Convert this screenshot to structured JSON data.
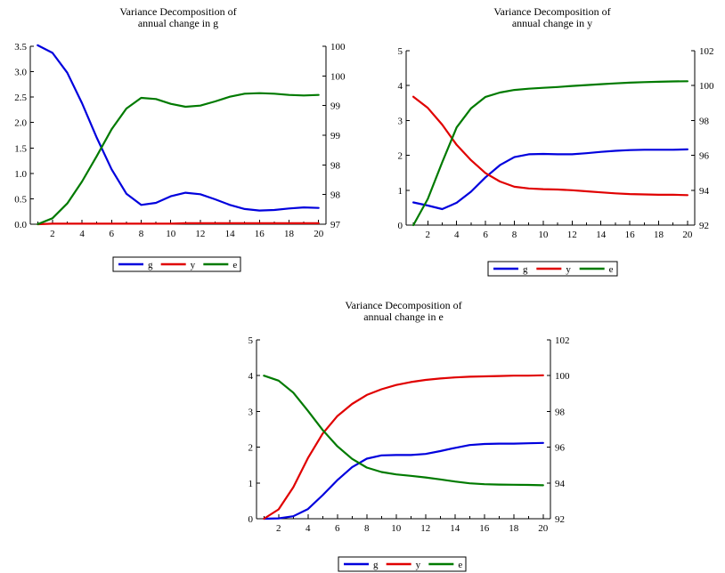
{
  "colors": {
    "g": "#0000dd",
    "y": "#e00000",
    "e": "#007a00"
  },
  "chart_data": [
    {
      "type": "line",
      "title_lines": [
        "Variance Decomposition of",
        "annual change in g"
      ],
      "x": [
        1,
        2,
        3,
        4,
        5,
        6,
        7,
        8,
        9,
        10,
        11,
        12,
        13,
        14,
        15,
        16,
        17,
        18,
        19,
        20
      ],
      "xlim": [
        0.5,
        20.5
      ],
      "xticks": [
        2,
        4,
        6,
        8,
        10,
        12,
        14,
        16,
        18,
        20
      ],
      "xtick_labels": [
        "2",
        "4",
        "6",
        "8",
        "10",
        "12",
        "14",
        "16",
        "18",
        "20"
      ],
      "ylim_left": [
        0,
        3.5
      ],
      "yticks_left": [
        0,
        0.5,
        1.0,
        1.5,
        2.0,
        2.5,
        3.0,
        3.5
      ],
      "ytick_labels_left": [
        "0.0",
        "0.5",
        "1.0",
        "1.5",
        "2.0",
        "2.5",
        "3.0",
        "3.5"
      ],
      "ylim_right": [
        97,
        100
      ],
      "yticks_right": [
        97,
        97.5,
        98,
        98.5,
        99,
        99.5,
        100
      ],
      "ytick_labels_right": [
        "97",
        "98",
        "98",
        "99",
        "99",
        "100",
        "100"
      ],
      "series": [
        {
          "name": "g",
          "axis": "left",
          "color_key": "g",
          "values": [
            3.52,
            3.37,
            2.98,
            2.38,
            1.7,
            1.08,
            0.6,
            0.38,
            0.42,
            0.55,
            0.62,
            0.59,
            0.49,
            0.38,
            0.3,
            0.27,
            0.28,
            0.31,
            0.33,
            0.32
          ]
        },
        {
          "name": "y",
          "axis": "left",
          "color_key": "y",
          "values": [
            0.0,
            0.01,
            0.01,
            0.01,
            0.01,
            0.01,
            0.01,
            0.01,
            0.01,
            0.01,
            0.02,
            0.02,
            0.02,
            0.02,
            0.02,
            0.02,
            0.02,
            0.02,
            0.02,
            0.02
          ]
        },
        {
          "name": "e",
          "axis": "right",
          "color_key": "e",
          "values": [
            97.0,
            97.1,
            97.35,
            97.72,
            98.15,
            98.6,
            98.95,
            99.13,
            99.11,
            99.03,
            98.98,
            99.0,
            99.07,
            99.15,
            99.2,
            99.21,
            99.2,
            99.18,
            99.17,
            99.18
          ]
        }
      ],
      "legend_position": "bottom"
    },
    {
      "type": "line",
      "title_lines": [
        "Variance Decomposition of",
        "annual change in y"
      ],
      "x": [
        1,
        2,
        3,
        4,
        5,
        6,
        7,
        8,
        9,
        10,
        11,
        12,
        13,
        14,
        15,
        16,
        17,
        18,
        19,
        20
      ],
      "xlim": [
        0.5,
        20.5
      ],
      "xticks": [
        2,
        4,
        6,
        8,
        10,
        12,
        14,
        16,
        18,
        20
      ],
      "xtick_labels": [
        "2",
        "4",
        "6",
        "8",
        "10",
        "12",
        "14",
        "16",
        "18",
        "20"
      ],
      "ylim_left": [
        0,
        5
      ],
      "yticks_left": [
        0,
        1,
        2,
        3,
        4,
        5
      ],
      "ytick_labels_left": [
        "0",
        "1",
        "2",
        "3",
        "4",
        "5"
      ],
      "ylim_right": [
        92,
        102
      ],
      "yticks_right": [
        92,
        94,
        96,
        98,
        100,
        102
      ],
      "ytick_labels_right": [
        "92",
        "94",
        "96",
        "98",
        "100",
        "102"
      ],
      "series": [
        {
          "name": "g",
          "axis": "left",
          "color_key": "g",
          "values": [
            0.65,
            0.56,
            0.46,
            0.64,
            0.96,
            1.37,
            1.72,
            1.95,
            2.03,
            2.04,
            2.03,
            2.03,
            2.06,
            2.1,
            2.13,
            2.15,
            2.16,
            2.16,
            2.16,
            2.17
          ]
        },
        {
          "name": "y",
          "axis": "left",
          "color_key": "y",
          "values": [
            3.68,
            3.36,
            2.88,
            2.3,
            1.86,
            1.49,
            1.25,
            1.1,
            1.05,
            1.03,
            1.02,
            1.0,
            0.97,
            0.94,
            0.91,
            0.89,
            0.88,
            0.87,
            0.87,
            0.86
          ]
        },
        {
          "name": "e",
          "axis": "right",
          "color_key": "e",
          "values": [
            92.0,
            93.5,
            95.6,
            97.6,
            98.7,
            99.35,
            99.6,
            99.75,
            99.82,
            99.87,
            99.92,
            99.98,
            100.03,
            100.08,
            100.13,
            100.17,
            100.2,
            100.22,
            100.24,
            100.25
          ]
        }
      ],
      "legend_position": "bottom"
    },
    {
      "type": "line",
      "title_lines": [
        "Variance Decomposition of",
        "annual change in e"
      ],
      "x": [
        1,
        2,
        3,
        4,
        5,
        6,
        7,
        8,
        9,
        10,
        11,
        12,
        13,
        14,
        15,
        16,
        17,
        18,
        19,
        20
      ],
      "xlim": [
        0.5,
        20.5
      ],
      "xticks": [
        2,
        4,
        6,
        8,
        10,
        12,
        14,
        16,
        18,
        20
      ],
      "xtick_labels": [
        "2",
        "4",
        "6",
        "8",
        "10",
        "12",
        "14",
        "16",
        "18",
        "20"
      ],
      "ylim_left": [
        0,
        5
      ],
      "yticks_left": [
        0,
        1,
        2,
        3,
        4,
        5
      ],
      "ytick_labels_left": [
        "0",
        "1",
        "2",
        "3",
        "4",
        "5"
      ],
      "ylim_right": [
        92,
        102
      ],
      "yticks_right": [
        92,
        94,
        96,
        98,
        100,
        102
      ],
      "ytick_labels_right": [
        "92",
        "94",
        "96",
        "98",
        "100",
        "102"
      ],
      "series": [
        {
          "name": "g",
          "axis": "left",
          "color_key": "g",
          "values": [
            0.0,
            0.01,
            0.07,
            0.27,
            0.66,
            1.08,
            1.44,
            1.68,
            1.77,
            1.78,
            1.78,
            1.81,
            1.89,
            1.98,
            2.06,
            2.09,
            2.1,
            2.1,
            2.11,
            2.12
          ]
        },
        {
          "name": "y",
          "axis": "left",
          "color_key": "y",
          "values": [
            0.0,
            0.26,
            0.88,
            1.7,
            2.38,
            2.87,
            3.21,
            3.46,
            3.62,
            3.74,
            3.82,
            3.88,
            3.92,
            3.95,
            3.97,
            3.98,
            3.99,
            4.0,
            4.0,
            4.01
          ]
        },
        {
          "name": "e",
          "axis": "right",
          "color_key": "e",
          "values": [
            100.0,
            99.72,
            99.05,
            98.03,
            96.96,
            96.05,
            95.35,
            94.86,
            94.61,
            94.48,
            94.4,
            94.31,
            94.2,
            94.08,
            93.98,
            93.93,
            93.91,
            93.9,
            93.89,
            93.87
          ]
        }
      ],
      "legend_position": "bottom"
    }
  ]
}
